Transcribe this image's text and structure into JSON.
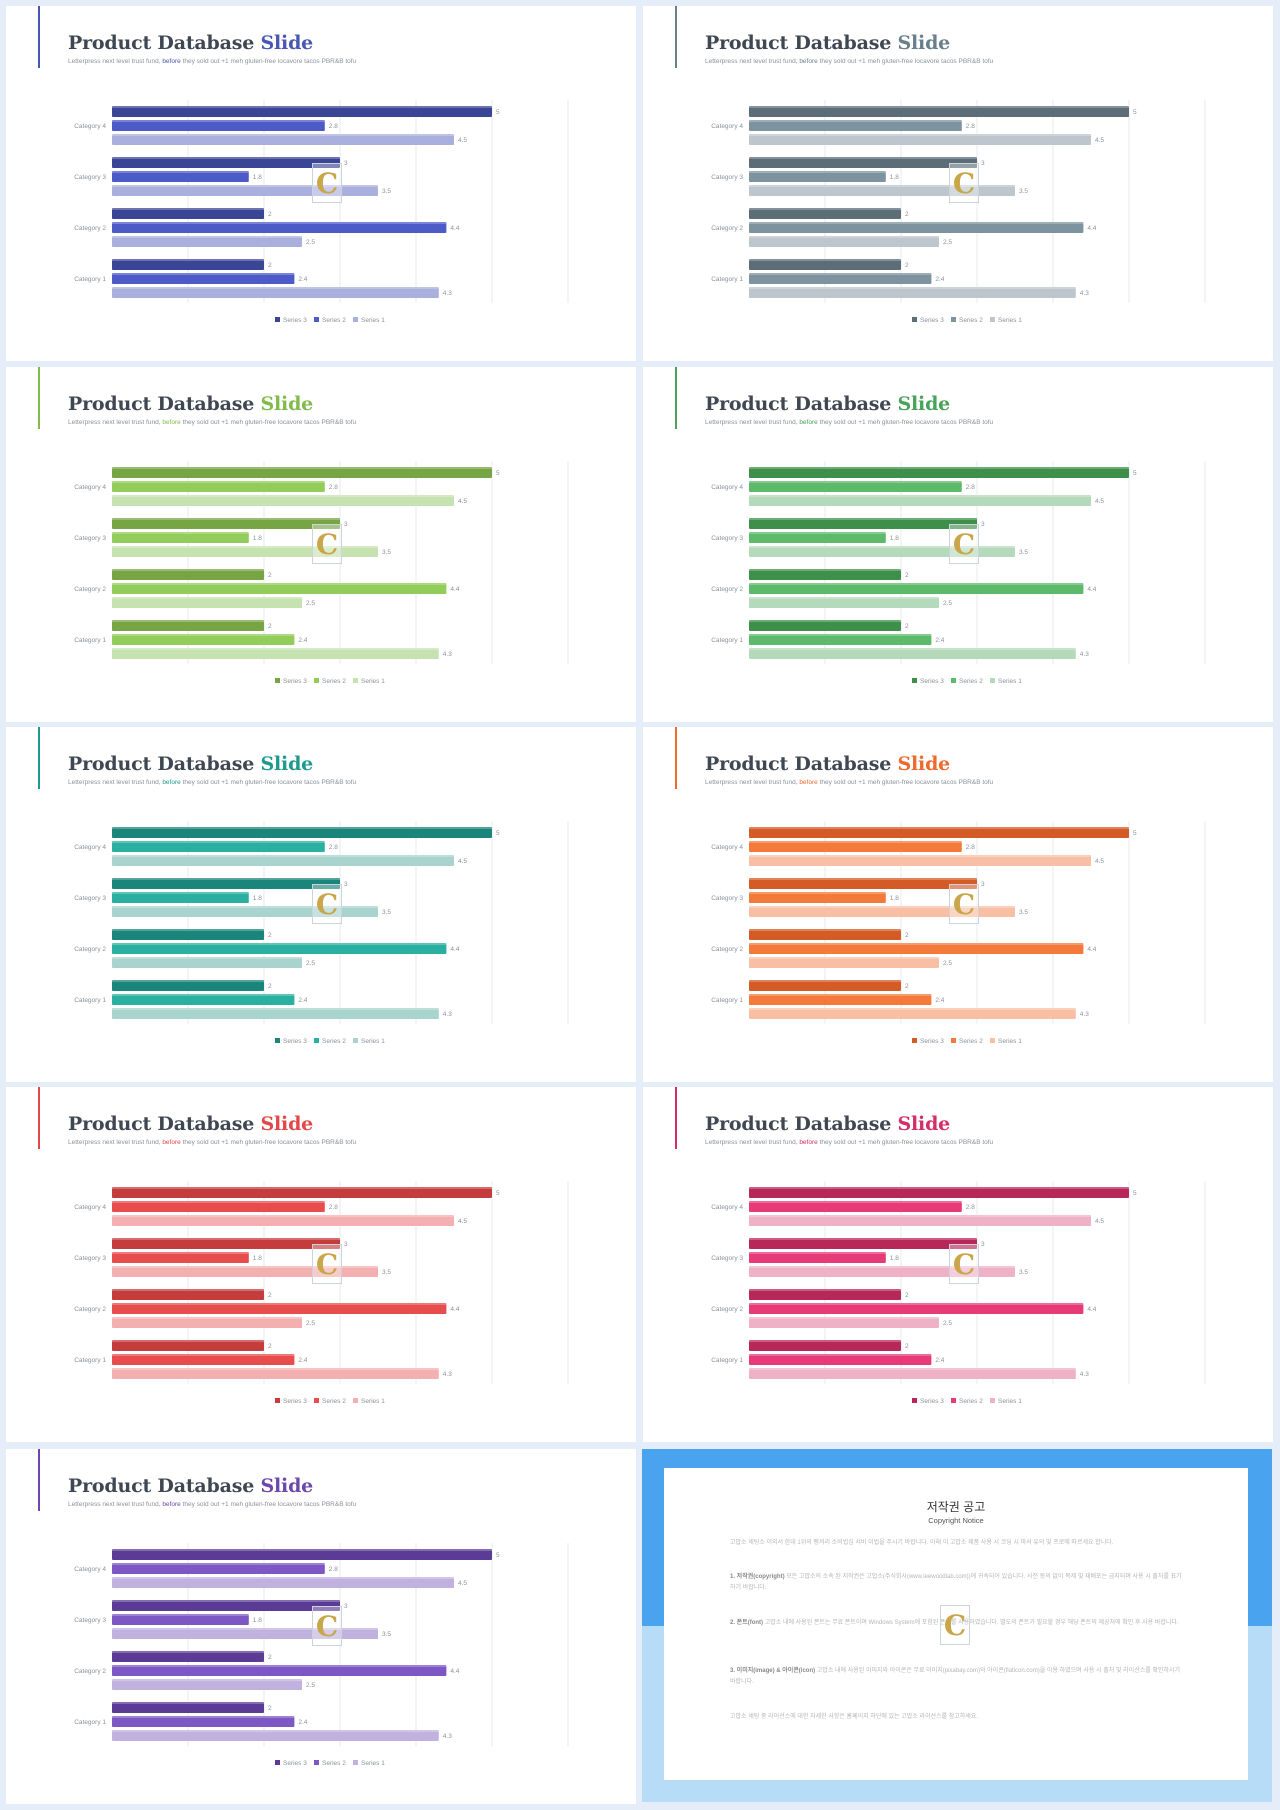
{
  "slides": [
    {
      "title_main": "Product Database",
      "title_accent": "Slide",
      "subtitle_pre": "Letterpress next level trust fund,",
      "subtitle_accent": "before",
      "subtitle_post": "they sold out +1 meh gluten-free locavore tacos PBR&B tofu",
      "colors": {
        "accent": "#4a56b4",
        "s3": "#3b4595",
        "s2": "#4d5bc8",
        "s1": "#aab0dd"
      }
    },
    {
      "title_main": "Product Database",
      "title_accent": "Slide",
      "subtitle_pre": "Letterpress next level trust fund,",
      "subtitle_accent": "before",
      "subtitle_post": "they sold out +1 meh gluten-free locavore tacos PBR&B tofu",
      "colors": {
        "accent": "#6a7f8c",
        "s3": "#5c6d78",
        "s2": "#7d939f",
        "s1": "#bcc6cc"
      }
    },
    {
      "title_main": "Product Database",
      "title_accent": "Slide",
      "subtitle_pre": "Letterpress next level trust fund,",
      "subtitle_accent": "before",
      "subtitle_post": "they sold out +1 meh gluten-free locavore tacos PBR&B tofu",
      "colors": {
        "accent": "#82bb4c",
        "s3": "#77a544",
        "s2": "#92cc5a",
        "s1": "#c6e2b0"
      }
    },
    {
      "title_main": "Product Database",
      "title_accent": "Slide",
      "subtitle_pre": "Letterpress next level trust fund,",
      "subtitle_accent": "before",
      "subtitle_post": "they sold out +1 meh gluten-free locavore tacos PBR&B tofu",
      "colors": {
        "accent": "#4aa35a",
        "s3": "#3d8f4a",
        "s2": "#5dba6b",
        "s1": "#b5dabb"
      }
    },
    {
      "title_main": "Product Database",
      "title_accent": "Slide",
      "subtitle_pre": "Letterpress next level trust fund,",
      "subtitle_accent": "before",
      "subtitle_post": "they sold out +1 meh gluten-free locavore tacos PBR&B tofu",
      "colors": {
        "accent": "#1e9a8c",
        "s3": "#1a857a",
        "s2": "#2ab0a0",
        "s1": "#a8d3ce"
      }
    },
    {
      "title_main": "Product Database",
      "title_accent": "Slide",
      "subtitle_pre": "Letterpress next level trust fund,",
      "subtitle_accent": "before",
      "subtitle_post": "they sold out +1 meh gluten-free locavore tacos PBR&B tofu",
      "colors": {
        "accent": "#ee6a2e",
        "s3": "#d45a26",
        "s2": "#f47a3c",
        "s1": "#f9bfa5"
      }
    },
    {
      "title_main": "Product Database",
      "title_accent": "Slide",
      "subtitle_pre": "Letterpress next level trust fund,",
      "subtitle_accent": "before",
      "subtitle_post": "they sold out +1 meh gluten-free locavore tacos PBR&B tofu",
      "colors": {
        "accent": "#e24848",
        "s3": "#c43c3c",
        "s2": "#e84d4d",
        "s1": "#f4b0b0"
      }
    },
    {
      "title_main": "Product Database",
      "title_accent": "Slide",
      "subtitle_pre": "Letterpress next level trust fund,",
      "subtitle_accent": "before",
      "subtitle_post": "they sold out +1 meh gluten-free locavore tacos PBR&B tofu",
      "colors": {
        "accent": "#d42e66",
        "s3": "#b72859",
        "s2": "#e63b77",
        "s1": "#eeb1c6"
      }
    },
    {
      "title_main": "Product Database",
      "title_accent": "Slide",
      "subtitle_pre": "Letterpress next level trust fund,",
      "subtitle_accent": "before",
      "subtitle_post": "they sold out +1 meh gluten-free locavore tacos PBR&B tofu",
      "colors": {
        "accent": "#6c48ad",
        "s3": "#5b3b96",
        "s2": "#7d58c4",
        "s1": "#c0b1df"
      }
    }
  ],
  "chart_data": {
    "type": "bar",
    "orientation": "horizontal",
    "categories": [
      "Category 1",
      "Category 2",
      "Category 3",
      "Category 4"
    ],
    "series": [
      {
        "name": "Series 3",
        "values": [
          2,
          2,
          3,
          5
        ]
      },
      {
        "name": "Series 2",
        "values": [
          2.4,
          4.4,
          1.8,
          2.8
        ]
      },
      {
        "name": "Series 1",
        "values": [
          4.3,
          2.5,
          3.5,
          4.5
        ]
      }
    ],
    "xlim": [
      0,
      5
    ],
    "grid": true,
    "legend_position": "bottom",
    "data_labels": true
  },
  "watermark_glyph": "C",
  "notice": {
    "title": "저작권 공고",
    "subtitle": "Copyright Notice",
    "p1": "고맙소 세팅소 이외서 한데 1위의 팽저리 소비법심 서비 이법을 주시기 바랍니다. 아래 이 고맙소 제품 사용 시 코딩 시 마서 유의 및 프로에 따르세요 합니다.",
    "p2_head": "1. 저작권(copyright)",
    "p2": " 모든 고맙소의 소속 된 저작권은 고맙소(주식회사(www.leewoodlab.com))에 귀속되어 있습니다. 사전 동의 없이 복제 및 재배포는 금지되며 사용 시 출처를 표기하기 바랍니다.",
    "p3_head": "2. 폰트(font)",
    "p3": " 고맙소 내에 사용된 폰트는 무료 폰트이며 Windows System에 포함된 폰트를 사용하였습니다. 별도의 폰트가 필요할 경우 해당 폰트의 제공처에 확인 후 사용 바랍니다.",
    "p4_head": "3. 이미지(image) & 아이콘(icon)",
    "p4": " 고맙소 내에 사용된 이미지와 아이콘은 무료 이미지(pixabay.com)와 아이콘(flaticon.com)을 이용 하였으며 사용 시 출처 및 라이선스를 확인하시기 바랍니다.",
    "p5": "고맙소 세팅 중 라이선스에 대한 자세한 사항은 홈페이지 하단에 있는 고맙소 라이선스를 참고하세요."
  }
}
